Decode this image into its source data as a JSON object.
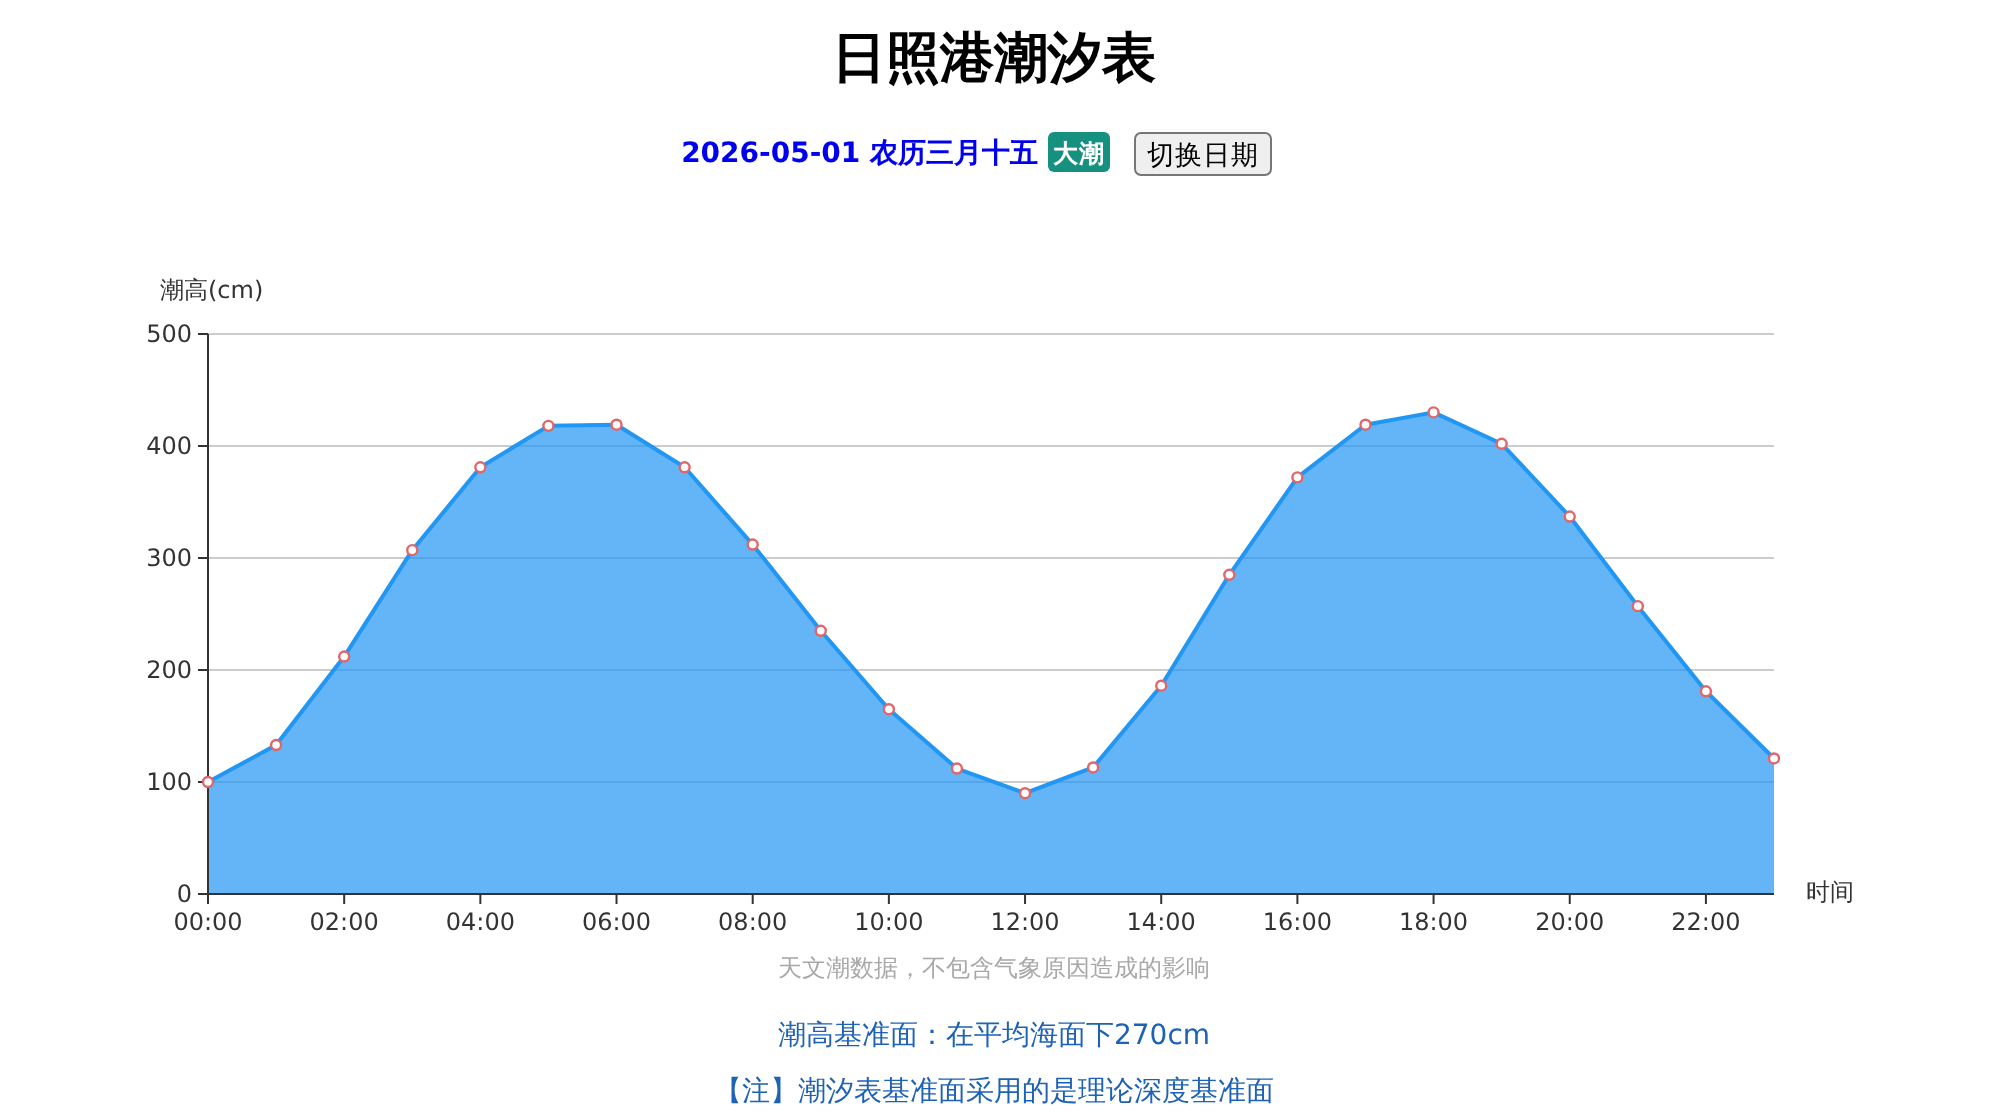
{
  "chart_data": {
    "type": "area",
    "title": "日照港潮汐表",
    "subtitle": "2026-05-01 农历三月十五",
    "xlabel": "时间",
    "ylabel": "潮高(cm)",
    "annotations": [
      "大潮",
      "切换日期",
      "天文潮数据，不包含气象原因造成的影响",
      "潮高基准面：在平均海面下270cm",
      "【注】潮汐表基准面采用的是理论深度基准面"
    ],
    "x": [
      0,
      1,
      2,
      3,
      4,
      5,
      6,
      7,
      8,
      9,
      10,
      11,
      12,
      13,
      14,
      15,
      16,
      17,
      18,
      19,
      20,
      21,
      22,
      23
    ],
    "series": [
      {
        "color": "#2196f3",
        "values": [
          100,
          133,
          212,
          307,
          381,
          418,
          419,
          381,
          312,
          235,
          165,
          112,
          90,
          113,
          186,
          285,
          372,
          419,
          430,
          402,
          337,
          257,
          181,
          121
        ]
      }
    ],
    "xlim": [
      0,
      23
    ],
    "xticks": [
      {
        "value": 0,
        "label": "00:00"
      },
      {
        "value": 2,
        "label": "02:00"
      },
      {
        "value": 4,
        "label": "04:00"
      },
      {
        "value": 6,
        "label": "06:00"
      },
      {
        "value": 8,
        "label": "08:00"
      },
      {
        "value": 10,
        "label": "10:00"
      },
      {
        "value": 12,
        "label": "12:00"
      },
      {
        "value": 14,
        "label": "14:00"
      },
      {
        "value": 16,
        "label": "16:00"
      },
      {
        "value": 18,
        "label": "18:00"
      },
      {
        "value": 20,
        "label": "20:00"
      },
      {
        "value": 22,
        "label": "22:00"
      }
    ],
    "ylim": [
      0,
      500
    ],
    "yticks": [
      0,
      100,
      200,
      300,
      400,
      500
    ],
    "grid": "y",
    "marker": "circle"
  }
}
